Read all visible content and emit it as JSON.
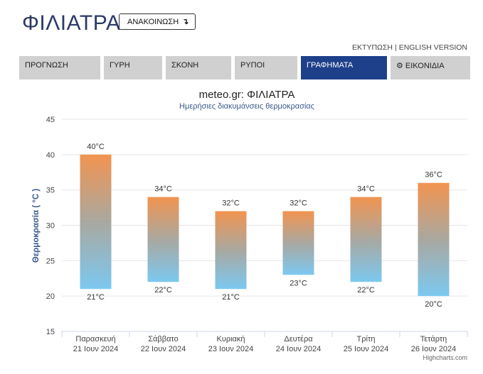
{
  "header": {
    "title": "ΦΙΛΙΑΤΡΑ",
    "announce_label": "ΑΝΑΚΟΙΝΩΣΗ",
    "announce_icon": "arrow-down-right-icon",
    "print_label": "ΕΚΤΥΠΩΣΗ",
    "separator": "|",
    "english_label": "ENGLISH VERSION"
  },
  "tabs": [
    {
      "label": "ΠΡΟΓΝΩΣΗ",
      "active": false
    },
    {
      "label": "ΓΥΡΗ",
      "active": false
    },
    {
      "label": "ΣΚΟΝΗ",
      "active": false
    },
    {
      "label": "ΡΥΠΟΙ",
      "active": false
    },
    {
      "label": "ΓΡΑΦΗΜΑΤΑ",
      "active": true
    },
    {
      "label": "ΕΙΚΟΝΙΔΙΑ",
      "active": false,
      "icon": "gear-icon"
    }
  ],
  "credits": "Highcharts.com",
  "chart_data": {
    "type": "bar",
    "subtype": "columnrange",
    "title": "meteo.gr: ΦΙΛΙΑΤΡΑ",
    "subtitle": "Ημερήσιες διακυμάνσεις θερμοκρασίας",
    "ylabel": "Θερμοκρασία ( °C )",
    "xlabel": "",
    "ylim": [
      15,
      45
    ],
    "yticks": [
      15,
      20,
      25,
      30,
      35,
      40,
      45
    ],
    "grid": true,
    "unit": "°C",
    "categories": [
      {
        "day": "Παρασκευή",
        "date": "21 Ιουν 2024"
      },
      {
        "day": "Σάββατο",
        "date": "22 Ιουν 2024"
      },
      {
        "day": "Κυριακή",
        "date": "23 Ιουν 2024"
      },
      {
        "day": "Δευτέρα",
        "date": "24 Ιουν 2024"
      },
      {
        "day": "Τρίτη",
        "date": "25 Ιουν 2024"
      },
      {
        "day": "Τετάρτη",
        "date": "26 Ιουν 2024"
      }
    ],
    "low": [
      21,
      22,
      21,
      23,
      22,
      20
    ],
    "high": [
      40,
      34,
      32,
      32,
      34,
      36
    ],
    "colors": {
      "top": "#f29450",
      "middle": "#a9a8a0",
      "bottom": "#7cc8f0",
      "title": "#222222",
      "subtitle": "#3a5a8c",
      "axis_title": "#3a5a8c",
      "grid": "#e6e6e6",
      "label": "#333333"
    }
  }
}
